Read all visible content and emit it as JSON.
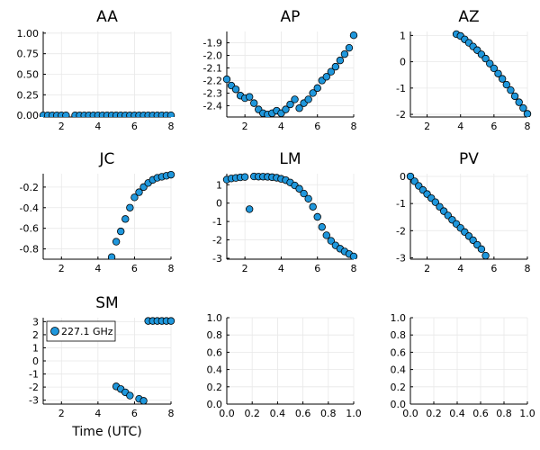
{
  "colors": {
    "marker": "#1f97dc",
    "marker_edge": "#000000",
    "grid": "#e8e8e8",
    "axis": "#000000"
  },
  "chart_data": [
    {
      "type": "scatter",
      "title": "AA",
      "xlabel": "",
      "ylabel": "",
      "xlim": [
        1,
        8
      ],
      "ylim": [
        -0.02,
        1.02
      ],
      "xticks": [
        2,
        4,
        6,
        8
      ],
      "xtick_labels": [
        "2",
        "4",
        "6",
        "8"
      ],
      "yticks": [
        0,
        0.25,
        0.5,
        0.75,
        1.0
      ],
      "ytick_labels": [
        "0.00",
        "0.25",
        "0.50",
        "0.75",
        "1.00"
      ],
      "x": [
        1.0,
        1.25,
        1.5,
        1.75,
        2.0,
        2.25,
        2.75,
        3.0,
        3.25,
        3.5,
        3.75,
        4.0,
        4.25,
        4.5,
        4.75,
        5.0,
        5.25,
        5.5,
        5.75,
        6.0,
        6.25,
        6.5,
        6.75,
        7.0,
        7.25,
        7.5,
        7.75,
        8.0
      ],
      "y": [
        0,
        0,
        0,
        0,
        0,
        0,
        0,
        0,
        0,
        0,
        0,
        0,
        0,
        0,
        0,
        0,
        0,
        0,
        0,
        0,
        0,
        0,
        0,
        0,
        0,
        0,
        0,
        0
      ]
    },
    {
      "type": "scatter",
      "title": "AP",
      "xlabel": "",
      "ylabel": "",
      "xlim": [
        1,
        8
      ],
      "ylim": [
        -2.49,
        -1.81
      ],
      "xticks": [
        2,
        4,
        6,
        8
      ],
      "xtick_labels": [
        "2",
        "4",
        "6",
        "8"
      ],
      "yticks": [
        -2.4,
        -2.3,
        -2.2,
        -2.1,
        -2.0,
        -1.9
      ],
      "ytick_labels": [
        "-2.4",
        "-2.3",
        "-2.2",
        "-2.1",
        "-2.0",
        "-1.9"
      ],
      "x": [
        1.0,
        1.25,
        1.5,
        1.75,
        2.0,
        2.25,
        2.5,
        2.75,
        3.0,
        3.25,
        3.5,
        3.75,
        4.0,
        4.25,
        4.5,
        4.75,
        5.0,
        5.25,
        5.5,
        5.75,
        6.0,
        6.25,
        6.5,
        6.75,
        7.0,
        7.25,
        7.5,
        7.75,
        8.0
      ],
      "y": [
        -2.19,
        -2.24,
        -2.27,
        -2.32,
        -2.34,
        -2.33,
        -2.38,
        -2.43,
        -2.46,
        -2.47,
        -2.46,
        -2.44,
        -2.46,
        -2.43,
        -2.39,
        -2.35,
        -2.42,
        -2.38,
        -2.35,
        -2.3,
        -2.26,
        -2.2,
        -2.17,
        -2.13,
        -2.09,
        -2.04,
        -1.99,
        -1.94,
        -1.84
      ]
    },
    {
      "type": "scatter",
      "title": "AZ",
      "xlabel": "",
      "ylabel": "",
      "xlim": [
        1,
        8
      ],
      "ylim": [
        -2.1,
        1.15
      ],
      "xticks": [
        2,
        4,
        6,
        8
      ],
      "xtick_labels": [
        "2",
        "4",
        "6",
        "8"
      ],
      "yticks": [
        -2,
        -1,
        0,
        1
      ],
      "ytick_labels": [
        "-2",
        "-1",
        "0",
        "1"
      ],
      "x": [
        3.75,
        4.0,
        4.25,
        4.5,
        4.75,
        5.0,
        5.25,
        5.5,
        5.75,
        6.0,
        6.25,
        6.5,
        6.75,
        7.0,
        7.25,
        7.5,
        7.75,
        8.0
      ],
      "y": [
        1.05,
        0.98,
        0.85,
        0.72,
        0.58,
        0.44,
        0.28,
        0.12,
        -0.07,
        -0.25,
        -0.45,
        -0.65,
        -0.87,
        -1.08,
        -1.31,
        -1.54,
        -1.76,
        -1.98
      ]
    },
    {
      "type": "scatter",
      "title": "JC",
      "xlabel": "",
      "ylabel": "",
      "xlim": [
        1,
        8
      ],
      "ylim": [
        -0.9,
        -0.07
      ],
      "xticks": [
        2,
        4,
        6,
        8
      ],
      "xtick_labels": [
        "2",
        "4",
        "6",
        "8"
      ],
      "yticks": [
        -0.8,
        -0.6,
        -0.4,
        -0.2
      ],
      "ytick_labels": [
        "-0.8",
        "-0.6",
        "-0.4",
        "-0.2"
      ],
      "x": [
        4.75,
        5.0,
        5.25,
        5.5,
        5.75,
        6.0,
        6.25,
        6.5,
        6.75,
        7.0,
        7.25,
        7.5,
        7.75,
        8.0
      ],
      "y": [
        -0.88,
        -0.73,
        -0.63,
        -0.51,
        -0.4,
        -0.3,
        -0.25,
        -0.2,
        -0.16,
        -0.13,
        -0.11,
        -0.1,
        -0.09,
        -0.08
      ]
    },
    {
      "type": "scatter",
      "title": "LM",
      "xlabel": "",
      "ylabel": "",
      "xlim": [
        1,
        8
      ],
      "ylim": [
        -3.05,
        1.6
      ],
      "xticks": [
        2,
        4,
        6,
        8
      ],
      "xtick_labels": [
        "2",
        "4",
        "6",
        "8"
      ],
      "yticks": [
        -3,
        -2,
        -1,
        0,
        1
      ],
      "ytick_labels": [
        "-3",
        "-2",
        "-1",
        "0",
        "1"
      ],
      "x": [
        1.0,
        1.25,
        1.5,
        1.75,
        2.0,
        2.5,
        2.75,
        3.0,
        3.25,
        3.5,
        3.75,
        4.0,
        4.25,
        4.5,
        4.75,
        5.0,
        5.25,
        5.5,
        5.75,
        6.0,
        6.25,
        6.5,
        6.75,
        7.0,
        7.25,
        7.5,
        7.75,
        8.0,
        2.25
      ],
      "y": [
        1.28,
        1.34,
        1.37,
        1.4,
        1.42,
        1.45,
        1.44,
        1.44,
        1.43,
        1.41,
        1.38,
        1.32,
        1.25,
        1.12,
        0.96,
        0.78,
        0.52,
        0.24,
        -0.2,
        -0.75,
        -1.3,
        -1.75,
        -2.05,
        -2.3,
        -2.48,
        -2.63,
        -2.77,
        -2.9,
        -0.33
      ]
    },
    {
      "type": "scatter",
      "title": "PV",
      "xlabel": "",
      "ylabel": "",
      "xlim": [
        1,
        8
      ],
      "ylim": [
        -3.05,
        0.1
      ],
      "xticks": [
        2,
        4,
        6,
        8
      ],
      "xtick_labels": [
        "2",
        "4",
        "6",
        "8"
      ],
      "yticks": [
        -3,
        -2,
        -1,
        0
      ],
      "ytick_labels": [
        "-3",
        "-2",
        "-1",
        "0"
      ],
      "x": [
        1.0,
        1.25,
        1.5,
        1.75,
        2.0,
        2.25,
        2.5,
        2.75,
        3.0,
        3.25,
        3.5,
        3.75,
        4.0,
        4.25,
        4.5,
        4.75,
        5.0,
        5.25,
        5.5
      ],
      "y": [
        0.0,
        -0.18,
        -0.35,
        -0.5,
        -0.65,
        -0.8,
        -0.95,
        -1.12,
        -1.28,
        -1.44,
        -1.6,
        -1.75,
        -1.9,
        -2.05,
        -2.2,
        -2.35,
        -2.52,
        -2.68,
        -2.92
      ]
    },
    {
      "type": "scatter",
      "title": "SM",
      "xlabel": "Time (UTC)",
      "ylabel": "",
      "xlim": [
        1,
        8
      ],
      "ylim": [
        -3.3,
        3.3
      ],
      "xticks": [
        2,
        4,
        6,
        8
      ],
      "xtick_labels": [
        "2",
        "4",
        "6",
        "8"
      ],
      "yticks": [
        -3,
        -2,
        -1,
        0,
        1,
        2,
        3
      ],
      "ytick_labels": [
        "-3",
        "-2",
        "-1",
        "0",
        "1",
        "2",
        "3"
      ],
      "legend": [
        "227.1 GHz"
      ],
      "legend_position": "top-left",
      "x": [
        5.0,
        5.25,
        5.5,
        5.75,
        6.25,
        6.5,
        6.75,
        7.0,
        7.25,
        7.5,
        7.75,
        8.0
      ],
      "y": [
        -1.95,
        -2.15,
        -2.4,
        -2.65,
        -2.9,
        -3.05,
        3.05,
        3.05,
        3.05,
        3.05,
        3.05,
        3.05
      ]
    },
    {
      "type": "scatter",
      "title": "",
      "xlabel": "",
      "ylabel": "",
      "xlim": [
        0,
        1
      ],
      "ylim": [
        0,
        1
      ],
      "xticks": [
        0,
        0.2,
        0.4,
        0.6,
        0.8,
        1.0
      ],
      "xtick_labels": [
        "0.0",
        "0.2",
        "0.4",
        "0.6",
        "0.8",
        "1.0"
      ],
      "yticks": [
        0,
        0.2,
        0.4,
        0.6,
        0.8,
        1.0
      ],
      "ytick_labels": [
        "0.0",
        "0.2",
        "0.4",
        "0.6",
        "0.8",
        "1.0"
      ],
      "x": [],
      "y": []
    },
    {
      "type": "scatter",
      "title": "",
      "xlabel": "",
      "ylabel": "",
      "xlim": [
        0,
        1
      ],
      "ylim": [
        0,
        1
      ],
      "xticks": [
        0,
        0.2,
        0.4,
        0.6,
        0.8,
        1.0
      ],
      "xtick_labels": [
        "0.0",
        "0.2",
        "0.4",
        "0.6",
        "0.8",
        "1.0"
      ],
      "yticks": [
        0,
        0.2,
        0.4,
        0.6,
        0.8,
        1.0
      ],
      "ytick_labels": [
        "0.0",
        "0.2",
        "0.4",
        "0.6",
        "0.8",
        "1.0"
      ],
      "x": [],
      "y": []
    }
  ]
}
